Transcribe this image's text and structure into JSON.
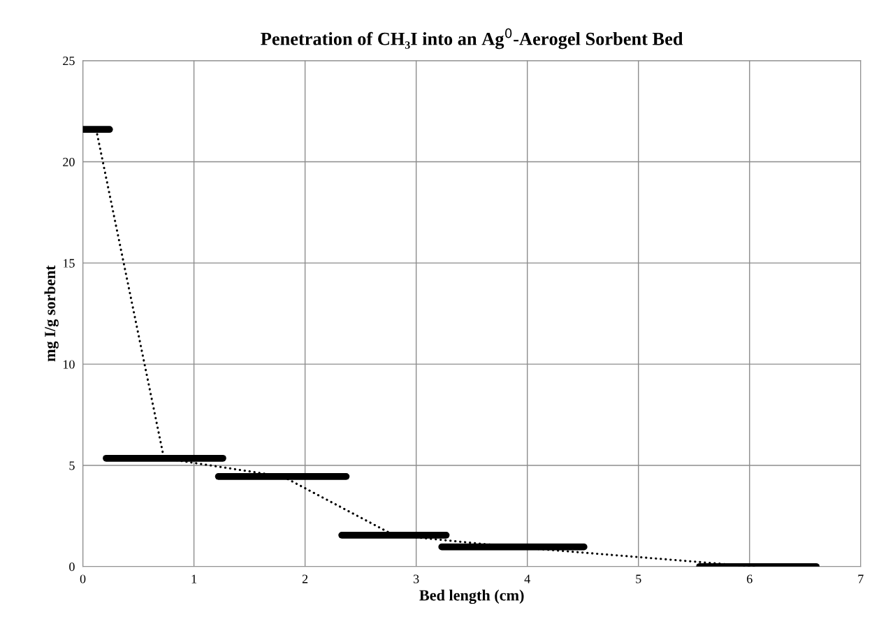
{
  "chart_data": {
    "type": "line",
    "title": "Penetration of CH₃I into an Ag$^{0}$-Aerogel Sorbent Bed",
    "xlabel": "Bed length (cm)",
    "ylabel": "mg I/g sorbent",
    "series": [
      {
        "color": "#000000",
        "x": [
          0,
          0.24
        ],
        "values": [
          21.6,
          21.6
        ]
      },
      {
        "color": "#000000",
        "x": [
          0.21,
          1.26
        ],
        "values": [
          5.35,
          5.35
        ]
      },
      {
        "color": "#000000",
        "x": [
          1.22,
          2.37
        ],
        "values": [
          4.45,
          4.45
        ]
      },
      {
        "color": "#000000",
        "x": [
          2.33,
          3.27
        ],
        "values": [
          1.55,
          1.55
        ]
      },
      {
        "color": "#000000",
        "x": [
          3.23,
          4.51
        ],
        "values": [
          0.97,
          0.97
        ]
      },
      {
        "color": "#000000",
        "x": [
          5.55,
          6.6
        ],
        "values": [
          0,
          0
        ]
      },
      {
        "color": "#000000",
        "x": [
          0.12,
          0.73,
          1.8,
          2.8,
          3.87,
          6.05
        ],
        "values": [
          21.6,
          5.35,
          4.45,
          1.55,
          0.97,
          0
        ],
        "line_style": "dotted"
      }
    ],
    "xlim": [
      0,
      7
    ],
    "xticks": [
      0,
      1,
      2,
      3,
      4,
      5,
      6,
      7
    ],
    "ylim": [
      0,
      25
    ],
    "yticks": [
      0,
      5,
      10,
      15,
      20,
      25
    ],
    "grid": true,
    "legend": false,
    "marker": "none",
    "line_style": "solid"
  }
}
